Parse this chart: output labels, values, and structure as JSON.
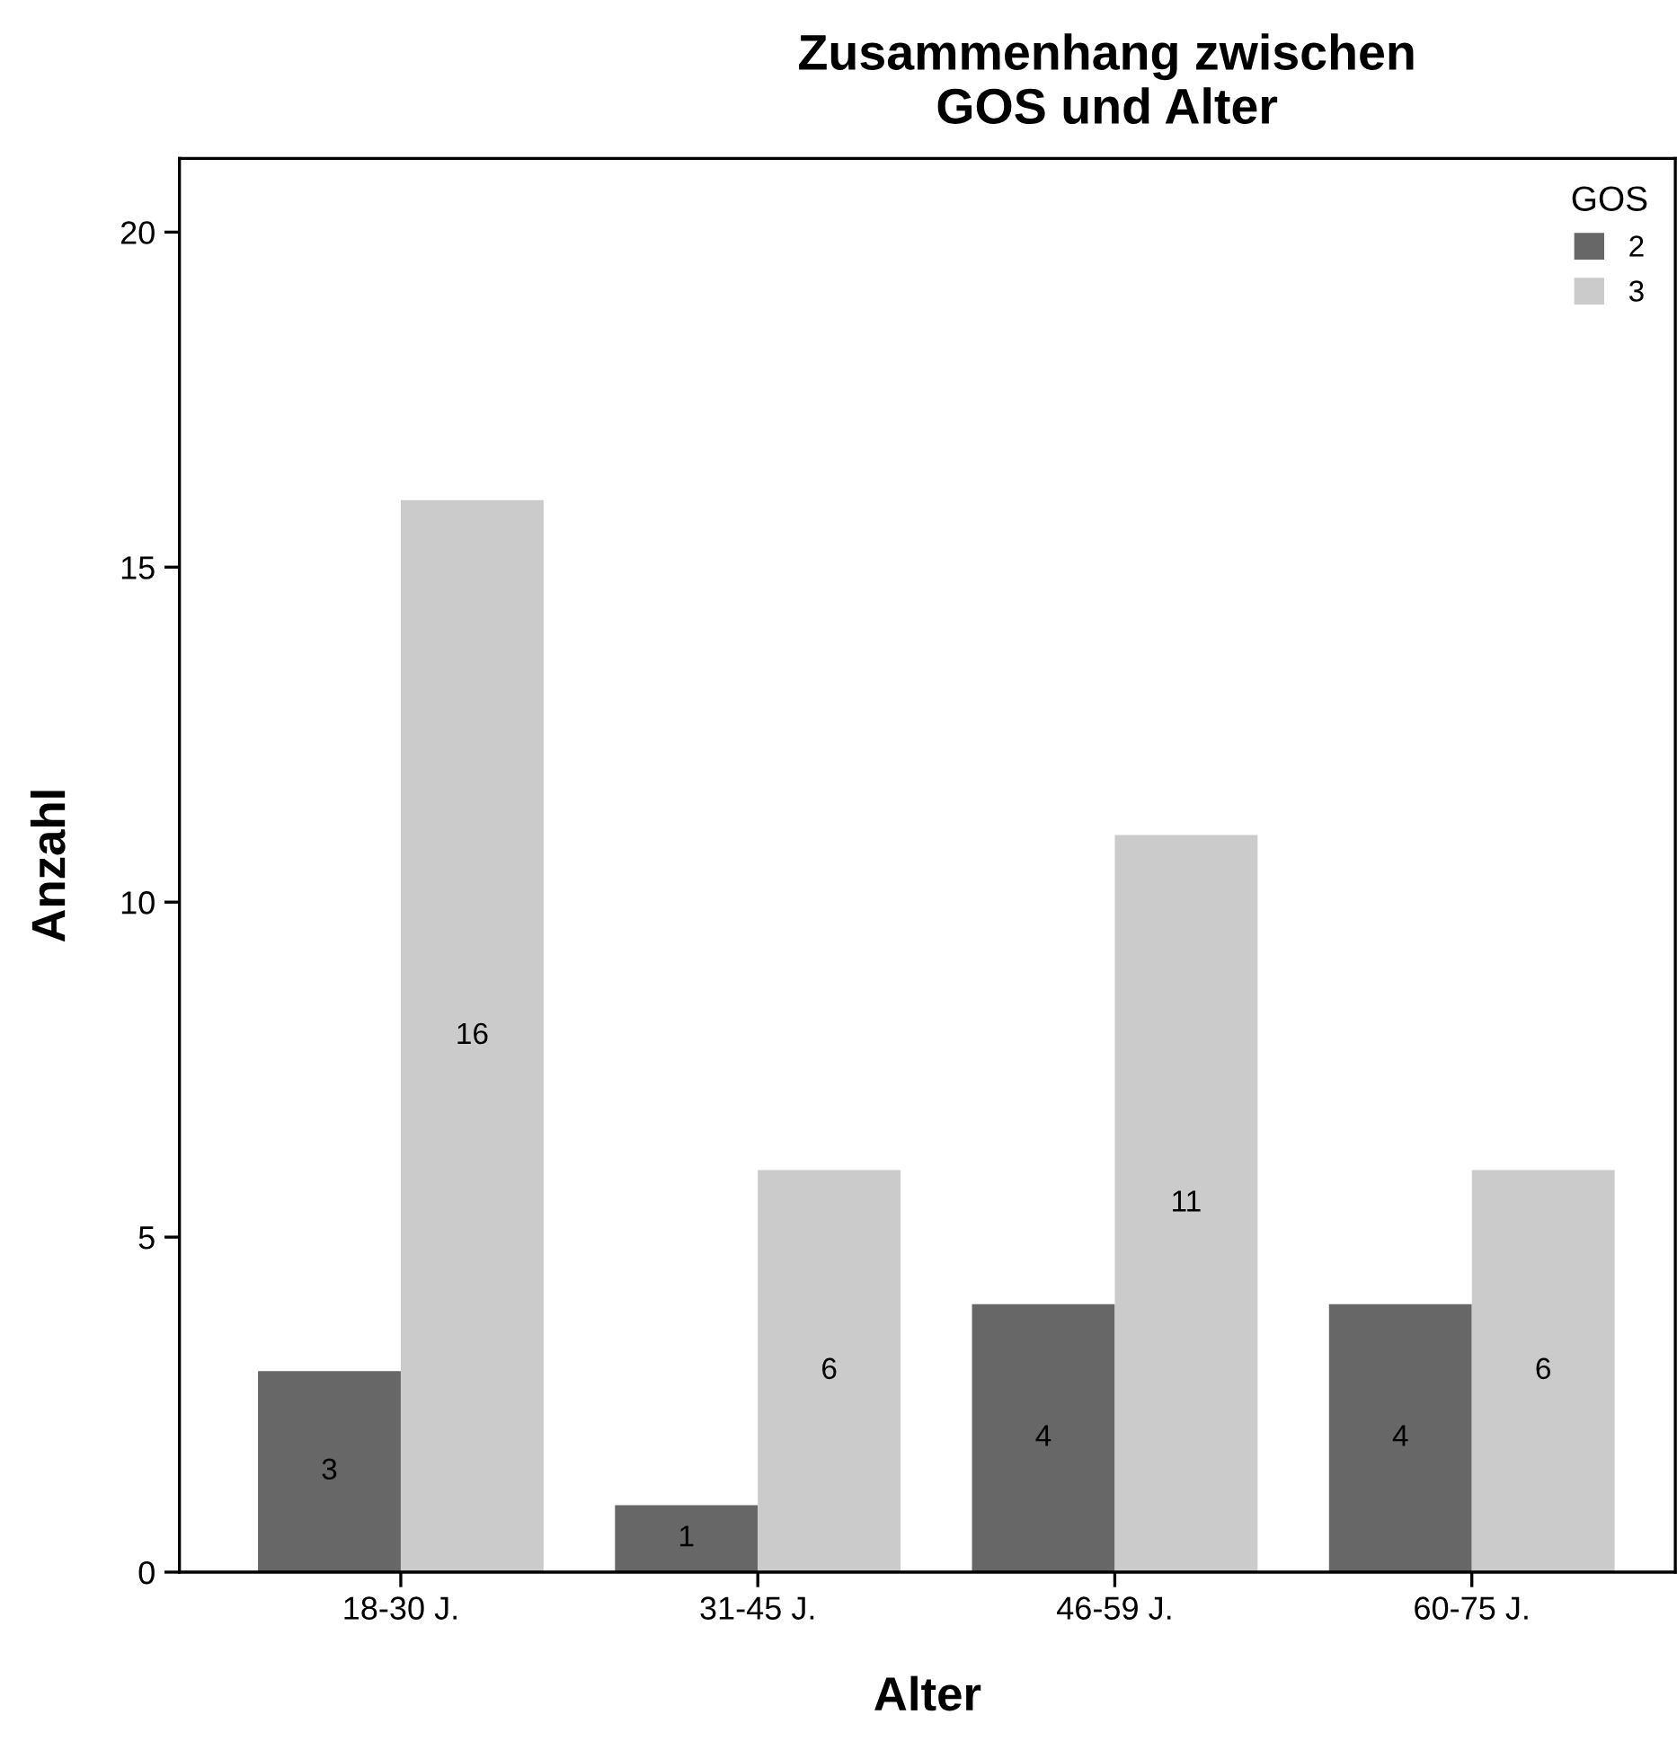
{
  "chart_data": {
    "type": "bar",
    "title": "Zusammenhang zwischen\nGOS und Alter",
    "xlabel": "Alter",
    "ylabel": "Anzahl",
    "legend_title": "GOS",
    "categories": [
      "18-30 J.",
      "31-45 J.",
      "46-59 J.",
      "60-75 J."
    ],
    "series": [
      {
        "name": "2",
        "color": "#676767",
        "values": [
          3,
          1,
          4,
          4
        ]
      },
      {
        "name": "3",
        "color": "#cbcbcb",
        "values": [
          16,
          6,
          11,
          6
        ]
      }
    ],
    "ylim": [
      0,
      21.1
    ],
    "yticks": [
      0,
      5,
      10,
      15,
      20
    ],
    "grid": false,
    "legend": "top right",
    "data_labels": true
  }
}
